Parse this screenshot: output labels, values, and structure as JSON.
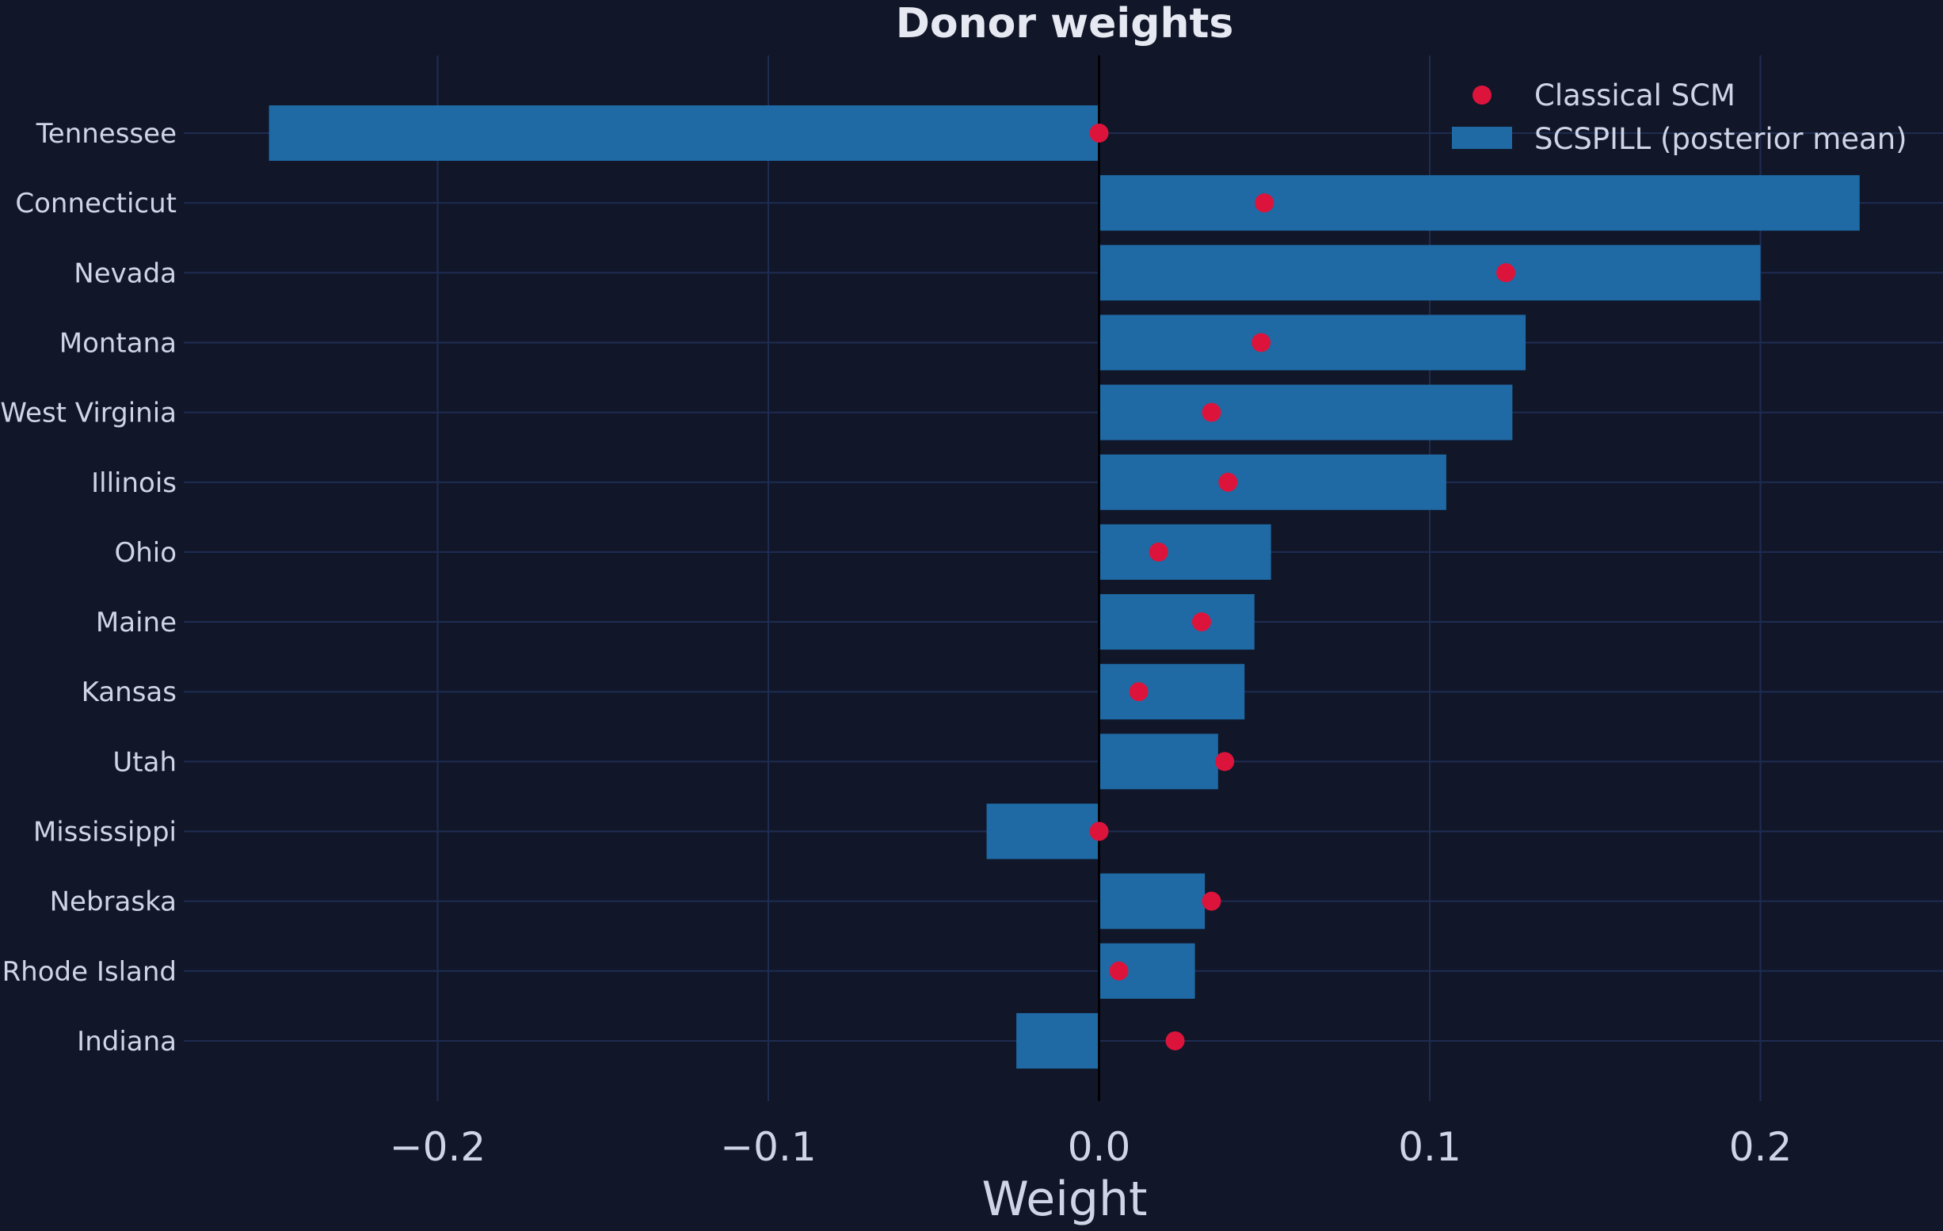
{
  "chart_data": {
    "type": "bar",
    "orientation": "horizontal",
    "title": "Donor weights",
    "xlabel": "Weight",
    "ylabel": "",
    "xlim": [
      -0.28,
      0.255
    ],
    "xticks": [
      -0.2,
      -0.1,
      0.0,
      0.1,
      0.2
    ],
    "xtick_labels": [
      "−0.2",
      "−0.1",
      "0.0",
      "0.1",
      "0.2"
    ],
    "grid": true,
    "legend_position": "top-right",
    "categories": [
      "Tennessee",
      "Connecticut",
      "Nevada",
      "Montana",
      "West Virginia",
      "Illinois",
      "Ohio",
      "Maine",
      "Kansas",
      "Utah",
      "Mississippi",
      "Nebraska",
      "Rhode Island",
      "Indiana"
    ],
    "series": [
      {
        "name": "SCSPILL (posterior mean)",
        "kind": "bar",
        "color": "#1f6aa5",
        "values": [
          -0.251,
          0.23,
          0.2,
          0.129,
          0.125,
          0.105,
          0.052,
          0.047,
          0.044,
          0.036,
          -0.034,
          0.032,
          0.029,
          -0.025
        ]
      },
      {
        "name": "Classical SCM",
        "kind": "point",
        "color": "#dc143c",
        "values": [
          0.0,
          0.05,
          0.123,
          0.049,
          0.034,
          0.039,
          0.018,
          0.031,
          0.012,
          0.038,
          0.0,
          0.034,
          0.006,
          0.023
        ]
      }
    ]
  },
  "colors": {
    "background": "#111729",
    "grid": "#1e2c52",
    "zero_line": "#000000",
    "text": "#cfd5e6",
    "title": "#e6e9f2"
  }
}
